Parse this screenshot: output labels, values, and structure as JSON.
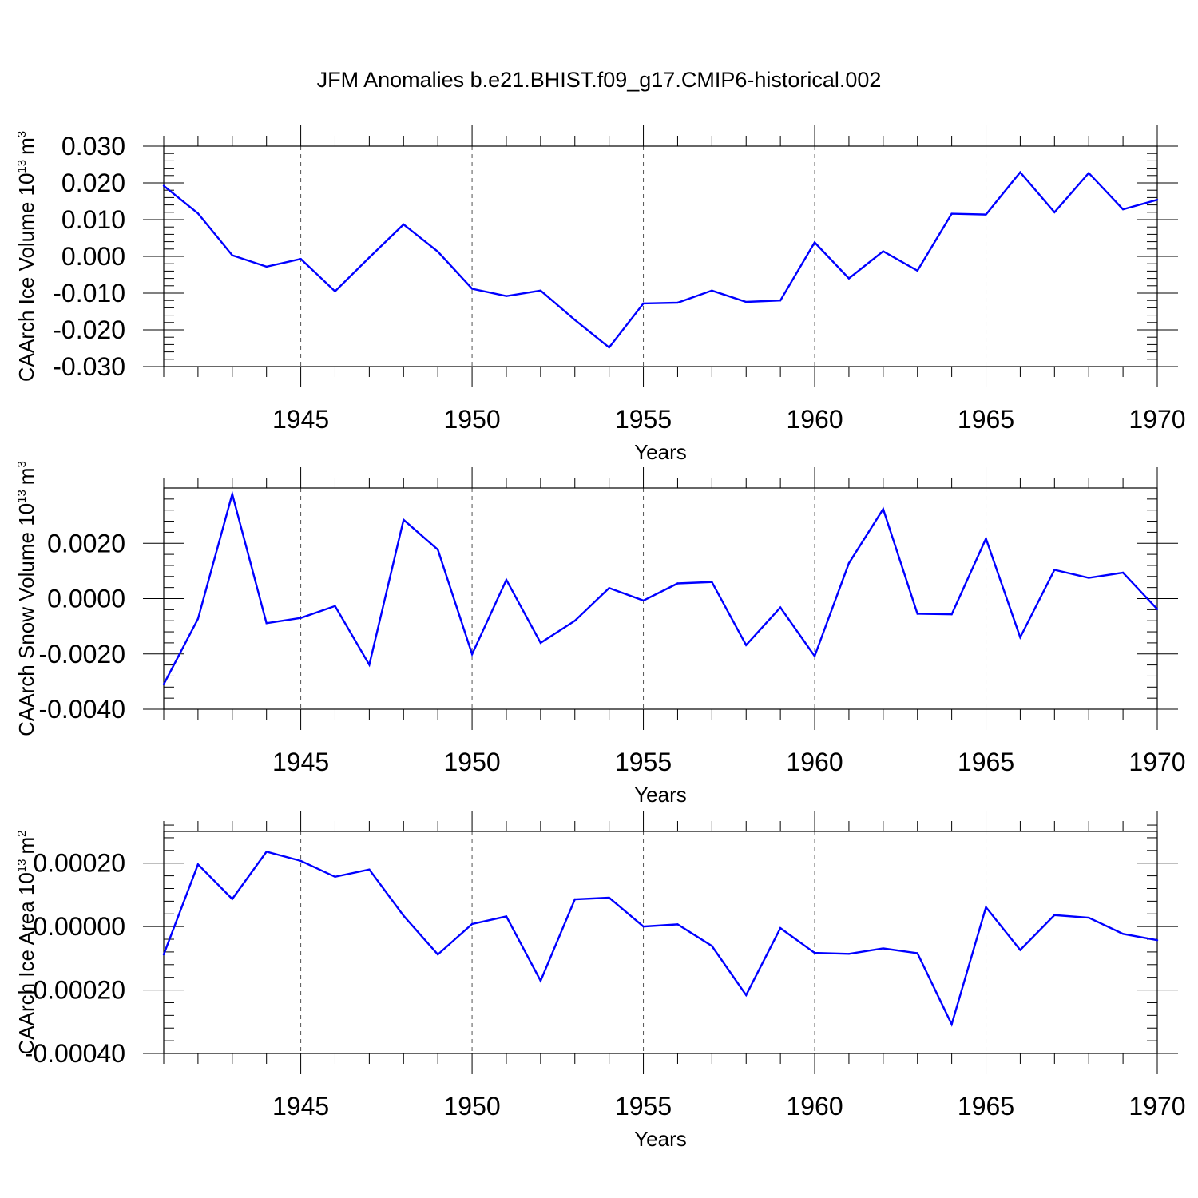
{
  "figure": {
    "title": "JFM Anomalies b.e21.BHIST.f09_g17.CMIP6-historical.002"
  },
  "chart_data": [
    {
      "type": "line",
      "ylabel": "CAArch Ice Volume 10",
      "ylabel_exp": "13",
      "ylabel_unit": "m",
      "ylabel_unit_exp": "3",
      "xlabel": "Years",
      "xlim": [
        1941,
        1970
      ],
      "ylim": [
        -0.03,
        0.03
      ],
      "yticks": [
        -0.03,
        -0.02,
        -0.01,
        0.0,
        0.01,
        0.02,
        0.03
      ],
      "ytick_labels": [
        "-0.030",
        "-0.020",
        "-0.010",
        "0.000",
        "0.010",
        "0.020",
        "0.030"
      ],
      "xticks": [
        1945,
        1950,
        1955,
        1960,
        1965,
        1970
      ],
      "xtick_labels": [
        "1945",
        "1950",
        "1955",
        "1960",
        "1965",
        "1970"
      ],
      "color": "#0000ff",
      "x": [
        1941,
        1942,
        1943,
        1944,
        1945,
        1946,
        1947,
        1948,
        1949,
        1950,
        1951,
        1952,
        1953,
        1954,
        1955,
        1956,
        1957,
        1958,
        1959,
        1960,
        1961,
        1962,
        1963,
        1964,
        1965,
        1966,
        1967,
        1968,
        1969,
        1970
      ],
      "values": [
        0.0192,
        0.0117,
        0.0003,
        -0.0028,
        -0.0007,
        -0.0095,
        -0.0003,
        0.0087,
        0.0013,
        -0.0088,
        -0.0108,
        -0.0093,
        -0.0173,
        -0.0248,
        -0.0128,
        -0.0126,
        -0.0093,
        -0.0124,
        -0.012,
        0.0038,
        -0.006,
        0.0014,
        -0.0039,
        0.0116,
        0.0114,
        0.0229,
        0.012,
        0.0227,
        0.0128,
        0.0154
      ]
    },
    {
      "type": "line",
      "ylabel": "CAArch Snow Volume 10",
      "ylabel_exp": "13",
      "ylabel_unit": "m",
      "ylabel_unit_exp": "3",
      "xlabel": "Years",
      "xlim": [
        1941,
        1970
      ],
      "ylim": [
        -0.004,
        0.004
      ],
      "yticks": [
        -0.004,
        -0.002,
        0.0,
        0.002
      ],
      "ytick_labels": [
        "-0.0040",
        "-0.0020",
        "0.0000",
        "0.0020"
      ],
      "xticks": [
        1945,
        1950,
        1955,
        1960,
        1965,
        1970
      ],
      "xtick_labels": [
        "1945",
        "1950",
        "1955",
        "1960",
        "1965",
        "1970"
      ],
      "color": "#0000ff",
      "x": [
        1941,
        1942,
        1943,
        1944,
        1945,
        1946,
        1947,
        1948,
        1949,
        1950,
        1951,
        1952,
        1953,
        1954,
        1955,
        1956,
        1957,
        1958,
        1959,
        1960,
        1961,
        1962,
        1963,
        1964,
        1965,
        1966,
        1967,
        1968,
        1969,
        1970
      ],
      "values": [
        -0.0031,
        -0.00073,
        0.00378,
        -0.00089,
        -0.0007,
        -0.00027,
        -0.00239,
        0.00285,
        0.00177,
        -0.00201,
        0.00068,
        -0.0016,
        -0.0008,
        0.00038,
        -7e-05,
        0.00055,
        0.0006,
        -0.00168,
        -0.00032,
        -0.00208,
        0.00128,
        0.00324,
        -0.00055,
        -0.00057,
        0.00217,
        -0.0014,
        0.00104,
        0.00075,
        0.00094,
        -0.00038
      ]
    },
    {
      "type": "line",
      "ylabel": "CAArch Ice Area 10",
      "ylabel_exp": "13",
      "ylabel_unit": "m",
      "ylabel_unit_exp": "2",
      "xlabel": "Years",
      "xlim": [
        1941,
        1970
      ],
      "ylim": [
        -0.0004,
        0.0003
      ],
      "yticks": [
        -0.0004,
        -0.0002,
        0.0,
        0.0002
      ],
      "ytick_labels": [
        "-0.00040",
        "-0.00020",
        "0.00000",
        "0.00020"
      ],
      "xticks": [
        1945,
        1950,
        1955,
        1960,
        1965,
        1970
      ],
      "xtick_labels": [
        "1945",
        "1950",
        "1955",
        "1960",
        "1965",
        "1970"
      ],
      "color": "#0000ff",
      "x": [
        1941,
        1942,
        1943,
        1944,
        1945,
        1946,
        1947,
        1948,
        1949,
        1950,
        1951,
        1952,
        1953,
        1954,
        1955,
        1956,
        1957,
        1958,
        1959,
        1960,
        1961,
        1962,
        1963,
        1964,
        1965,
        1966,
        1967,
        1968,
        1969,
        1970
      ],
      "values": [
        -8.8e-05,
        0.000196,
        8.7e-05,
        0.000236,
        0.000207,
        0.000157,
        0.00018,
        3.4e-05,
        -8.8e-05,
        8e-06,
        3.2e-05,
        -0.000171,
        8.6e-05,
        9.1e-05,
        0.0,
        7e-06,
        -6.1e-05,
        -0.000216,
        -5e-06,
        -8.3e-05,
        -8.6e-05,
        -6.9e-05,
        -8.4e-05,
        -0.000308,
        6.1e-05,
        -7.4e-05,
        3.6e-05,
        2.8e-05,
        -2.3e-05,
        -4.3e-05
      ]
    }
  ]
}
